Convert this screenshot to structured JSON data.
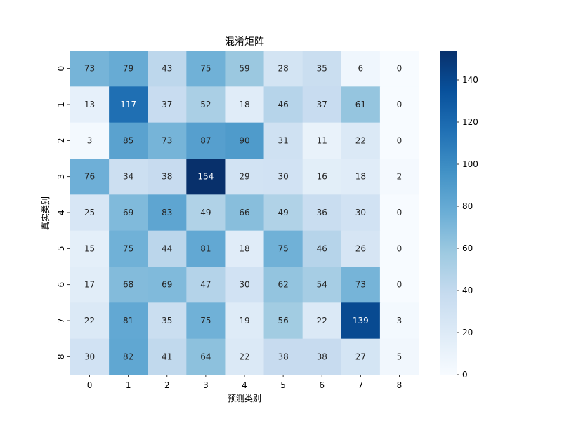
{
  "chart_data": {
    "type": "heatmap",
    "title": "混淆矩阵",
    "xlabel": "预测类别",
    "ylabel": "真实类别",
    "x_categories": [
      "0",
      "1",
      "2",
      "3",
      "4",
      "5",
      "6",
      "7",
      "8"
    ],
    "y_categories": [
      "0",
      "1",
      "2",
      "3",
      "4",
      "5",
      "6",
      "7",
      "8"
    ],
    "matrix": [
      [
        73,
        79,
        43,
        75,
        59,
        28,
        35,
        6,
        0
      ],
      [
        13,
        117,
        37,
        52,
        18,
        46,
        37,
        61,
        0
      ],
      [
        3,
        85,
        73,
        87,
        90,
        31,
        11,
        22,
        0
      ],
      [
        76,
        34,
        38,
        154,
        29,
        30,
        16,
        18,
        2
      ],
      [
        25,
        69,
        83,
        49,
        66,
        49,
        36,
        30,
        0
      ],
      [
        15,
        75,
        44,
        81,
        18,
        75,
        46,
        26,
        0
      ],
      [
        17,
        68,
        69,
        47,
        30,
        62,
        54,
        73,
        0
      ],
      [
        22,
        81,
        35,
        75,
        19,
        56,
        22,
        139,
        3
      ],
      [
        30,
        82,
        41,
        64,
        22,
        38,
        38,
        27,
        5
      ]
    ],
    "colormap": "Blues",
    "color_range": [
      0,
      154
    ],
    "colorbar_ticks": [
      0,
      20,
      40,
      60,
      80,
      100,
      120,
      140
    ],
    "colorbar_tick_labels": [
      "0",
      "20",
      "40",
      "60",
      "80",
      "100",
      "120",
      "140"
    ]
  }
}
